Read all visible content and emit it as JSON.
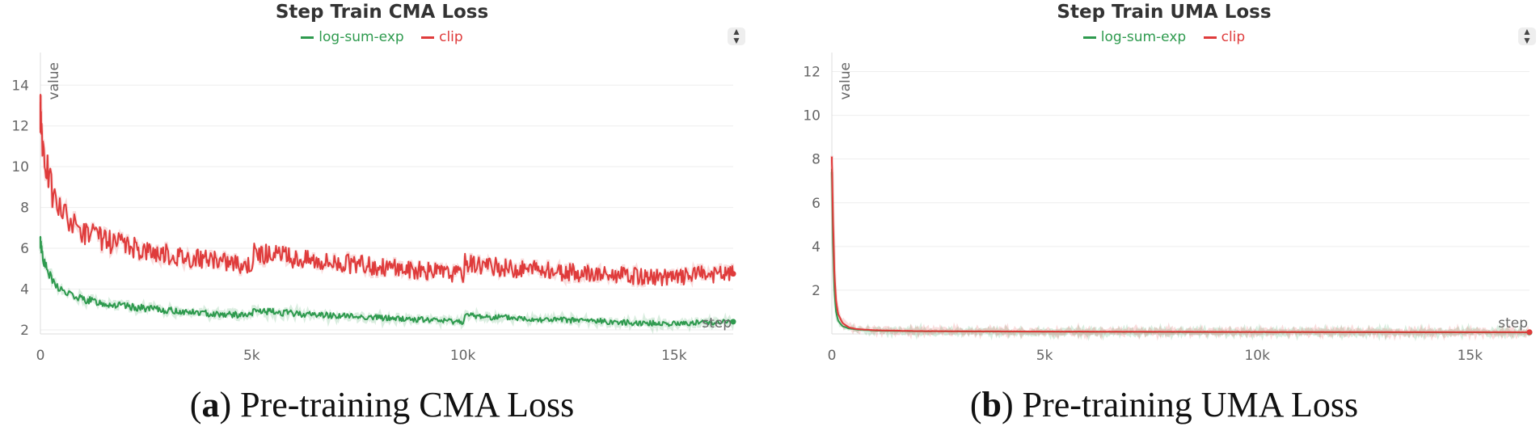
{
  "charts": {
    "colors": {
      "series0": "#2e9a4e",
      "series1": "#df3b3b",
      "axis_text": "#666666",
      "grid": "#eeeeee"
    },
    "chart_data": [
      {
        "type": "line",
        "title": "Step Train CMA Loss",
        "xlabel": "step",
        "ylabel": "value",
        "xlim": [
          0,
          16400
        ],
        "ylim": [
          1.8,
          15.2
        ],
        "xticks": [
          0,
          5000,
          10000,
          15000
        ],
        "xtick_labels": [
          "0",
          "5k",
          "10k",
          "15k"
        ],
        "yticks": [
          2,
          4,
          6,
          8,
          10,
          12,
          14
        ],
        "ytick_labels": [
          "2",
          "4",
          "6",
          "8",
          "10",
          "12",
          "14"
        ],
        "series": [
          {
            "name": "log-sum-exp",
            "x": [
              0,
              100,
              300,
              600,
              1000,
              1500,
              2000,
              3000,
              4000,
              5000,
              5050,
              6000,
              7000,
              8000,
              9000,
              10000,
              10050,
              11000,
              12000,
              13000,
              14000,
              15000,
              15500,
              16400
            ],
            "y": [
              6.3,
              5.2,
              4.3,
              3.8,
              3.5,
              3.3,
              3.15,
              2.95,
              2.8,
              2.7,
              2.95,
              2.8,
              2.7,
              2.6,
              2.5,
              2.4,
              2.7,
              2.6,
              2.5,
              2.45,
              2.35,
              2.3,
              2.35,
              2.4
            ]
          },
          {
            "name": "clip",
            "x": [
              0,
              100,
              300,
              600,
              1000,
              1500,
              2000,
              3000,
              4000,
              5000,
              5050,
              6000,
              7000,
              8000,
              9000,
              10000,
              10050,
              11000,
              12000,
              13000,
              14000,
              15000,
              15500,
              16400
            ],
            "y": [
              12.5,
              10.5,
              8.5,
              7.5,
              6.8,
              6.4,
              6.1,
              5.7,
              5.4,
              5.2,
              5.8,
              5.5,
              5.3,
              5.1,
              4.9,
              4.7,
              5.3,
              5.05,
              4.9,
              4.75,
              4.65,
              4.55,
              4.7,
              4.75
            ]
          }
        ]
      },
      {
        "type": "line",
        "title": "Step Train UMA Loss",
        "xlabel": "step",
        "ylabel": "value",
        "xlim": [
          0,
          16400
        ],
        "ylim": [
          0,
          12.5
        ],
        "xticks": [
          0,
          5000,
          10000,
          15000
        ],
        "xtick_labels": [
          "0",
          "5k",
          "10k",
          "15k"
        ],
        "yticks": [
          2,
          4,
          6,
          8,
          10,
          12
        ],
        "ytick_labels": [
          "2",
          "4",
          "6",
          "8",
          "10",
          "12"
        ],
        "series": [
          {
            "name": "log-sum-exp",
            "x": [
              0,
              30,
              60,
              100,
              150,
              250,
              400,
              600,
              1000,
              2000,
              5000,
              10000,
              16400
            ],
            "y": [
              7.5,
              4.0,
              2.0,
              1.0,
              0.6,
              0.35,
              0.25,
              0.2,
              0.15,
              0.12,
              0.1,
              0.08,
              0.07
            ]
          },
          {
            "name": "clip",
            "x": [
              0,
              30,
              60,
              100,
              150,
              250,
              400,
              600,
              1000,
              2000,
              5000,
              10000,
              16400
            ],
            "y": [
              8.0,
              5.0,
              2.8,
              1.5,
              0.9,
              0.5,
              0.3,
              0.22,
              0.17,
              0.13,
              0.11,
              0.09,
              0.08
            ]
          }
        ]
      }
    ]
  },
  "captions": [
    {
      "letter": "a",
      "text": " Pre-training CMA Loss"
    },
    {
      "letter": "b",
      "text": " Pre-training UMA Loss"
    }
  ],
  "ui": {
    "sort_icon": "⬍"
  }
}
